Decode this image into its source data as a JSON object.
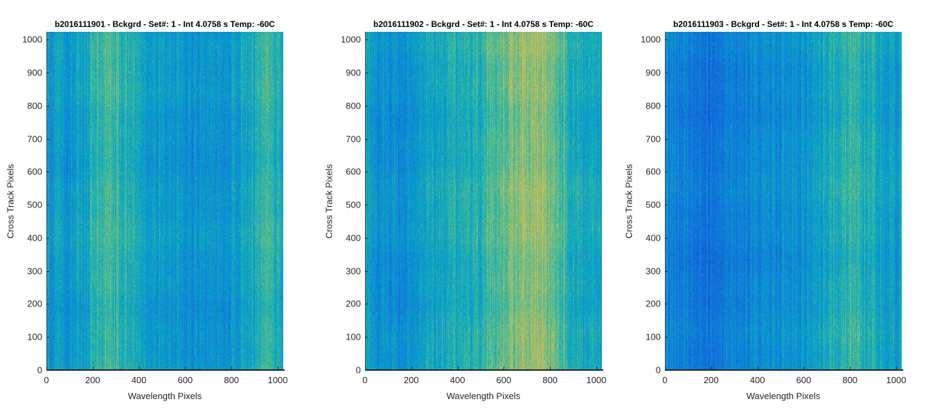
{
  "chart_data": [
    {
      "type": "heatmap",
      "title": "b2016111901 - Bckgrd - Set#: 1 - Int 4.0758 s Temp: -60C",
      "xlabel": "Wavelength Pixels",
      "ylabel": "Cross Track Pixels",
      "xlim": [
        0,
        1024
      ],
      "ylim": [
        0,
        1024
      ],
      "xticks": [
        0,
        200,
        400,
        600,
        800,
        1000
      ],
      "yticks": [
        0,
        100,
        200,
        300,
        400,
        500,
        600,
        700,
        800,
        900,
        1000
      ],
      "colormap": "parula",
      "column_profile": {
        "x": [
          0,
          100,
          200,
          280,
          350,
          450,
          550,
          650,
          750,
          850,
          950,
          1024
        ],
        "level": [
          0.45,
          0.4,
          0.52,
          0.6,
          0.5,
          0.44,
          0.42,
          0.38,
          0.4,
          0.45,
          0.58,
          0.48
        ]
      }
    },
    {
      "type": "heatmap",
      "title": "b2016111902 - Bckgrd - Set#: 1 - Int 4.0758 s Temp: -60C",
      "xlabel": "Wavelength Pixels",
      "ylabel": "Cross Track Pixels",
      "xlim": [
        0,
        1024
      ],
      "ylim": [
        0,
        1024
      ],
      "xticks": [
        0,
        200,
        400,
        600,
        800,
        1000
      ],
      "yticks": [
        0,
        100,
        200,
        300,
        400,
        500,
        600,
        700,
        800,
        900,
        1000
      ],
      "colormap": "parula",
      "column_profile": {
        "x": [
          0,
          100,
          200,
          300,
          400,
          500,
          560,
          650,
          750,
          830,
          900,
          1024
        ],
        "level": [
          0.42,
          0.36,
          0.4,
          0.48,
          0.5,
          0.52,
          0.6,
          0.68,
          0.7,
          0.62,
          0.5,
          0.45
        ]
      }
    },
    {
      "type": "heatmap",
      "title": "b2016111903 - Bckgrd - Set#: 1 - Int 4.0758 s Temp: -60C",
      "xlabel": "Wavelength Pixels",
      "ylabel": "Cross Track Pixels",
      "xlim": [
        0,
        1024
      ],
      "ylim": [
        0,
        1024
      ],
      "xticks": [
        0,
        200,
        400,
        600,
        800,
        1000
      ],
      "yticks": [
        0,
        100,
        200,
        300,
        400,
        500,
        600,
        700,
        800,
        900,
        1000
      ],
      "colormap": "parula",
      "column_profile": {
        "x": [
          0,
          100,
          200,
          300,
          400,
          500,
          600,
          700,
          800,
          900,
          1000,
          1024
        ],
        "level": [
          0.36,
          0.3,
          0.28,
          0.32,
          0.36,
          0.38,
          0.4,
          0.48,
          0.55,
          0.52,
          0.44,
          0.4
        ]
      }
    }
  ]
}
